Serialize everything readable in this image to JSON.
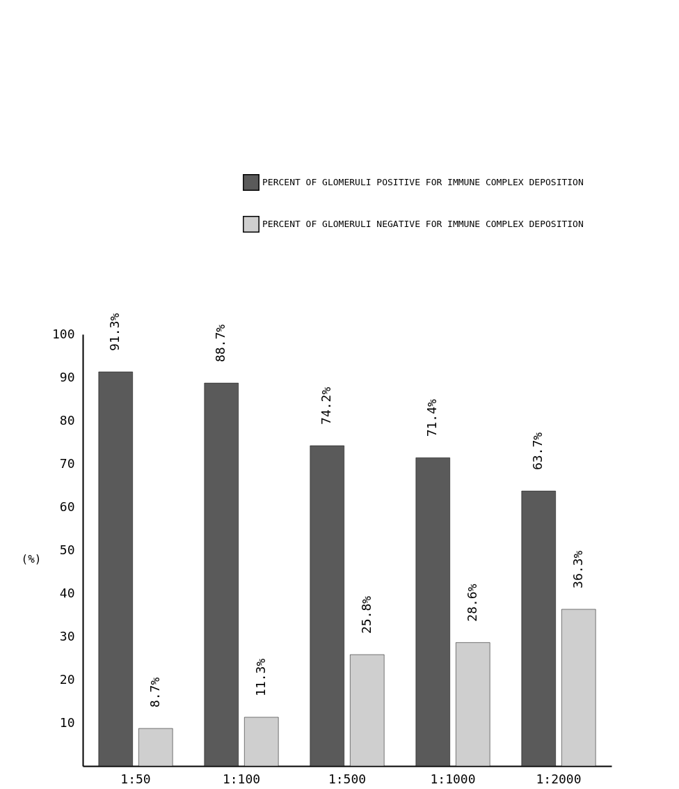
{
  "chart_data": {
    "type": "bar",
    "ylabel": "(%)",
    "categories": [
      "1:50",
      "1:100",
      "1:500",
      "1:1000",
      "1:2000"
    ],
    "series": [
      {
        "name": "PERCENT OF GLOMERULI POSITIVE FOR IMMUNE COMPLEX DEPOSITION",
        "color": "#5a5a5a",
        "values": [
          91.3,
          88.7,
          74.2,
          71.4,
          63.7
        ],
        "value_labels": [
          "91.3%",
          "88.7%",
          "74.2%",
          "71.4%",
          "63.7%"
        ]
      },
      {
        "name": "PERCENT OF GLOMERULI NEGATIVE FOR IMMUNE COMPLEX DEPOSITION",
        "color": "#cfcfcf",
        "values": [
          8.7,
          11.3,
          25.8,
          28.6,
          36.3
        ],
        "value_labels": [
          "8.7%",
          "11.3%",
          "25.8%",
          "28.6%",
          "36.3%"
        ]
      }
    ],
    "ylim": [
      0,
      100
    ],
    "yticks": [
      10,
      20,
      30,
      40,
      50,
      60,
      70,
      80,
      90,
      100
    ],
    "legend": "top right",
    "grid": false
  }
}
